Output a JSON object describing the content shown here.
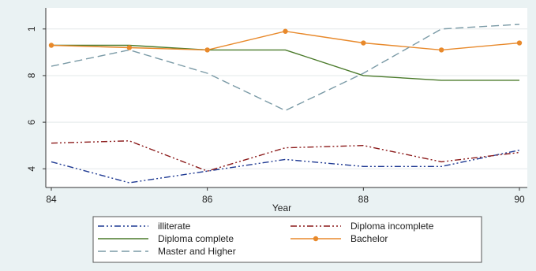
{
  "chart_data": {
    "type": "line",
    "title": "",
    "xlabel": "Year",
    "ylabel": "",
    "x": [
      84,
      85,
      86,
      87,
      88,
      89,
      90
    ],
    "xlim": [
      84,
      90
    ],
    "ylim": [
      0.34,
      1.05
    ],
    "x_ticks": [
      "84",
      "86",
      "88",
      "90"
    ],
    "y_ticks": [
      "4",
      "6",
      "8",
      "1"
    ],
    "grid": true,
    "legend_position": "bottom",
    "series": [
      {
        "name": "illiterate",
        "values": [
          0.43,
          0.34,
          0.39,
          0.44,
          0.41,
          0.41,
          0.48
        ],
        "color": "#1f3a93",
        "dash": "8,3,2,3,2,3",
        "marker": "none"
      },
      {
        "name": "Diploma incomplete",
        "values": [
          0.51,
          0.52,
          0.39,
          0.49,
          0.5,
          0.43,
          0.47
        ],
        "color": "#8b1a1a",
        "dash": "8,3,2,3,2,3",
        "marker": "none"
      },
      {
        "name": "Diploma complete",
        "values": [
          0.93,
          0.93,
          0.91,
          0.91,
          0.8,
          0.78,
          0.78
        ],
        "color": "#4a7a2a",
        "dash": "",
        "marker": "none"
      },
      {
        "name": "Bachelor",
        "values": [
          0.93,
          0.92,
          0.91,
          0.99,
          0.94,
          0.91,
          0.94
        ],
        "color": "#e8892b",
        "dash": "",
        "marker": "circle"
      },
      {
        "name": "Master and Higher",
        "values": [
          0.84,
          0.91,
          0.81,
          0.65,
          0.81,
          1.0,
          1.02
        ],
        "color": "#7a9aa6",
        "dash": "10,5",
        "marker": "none"
      }
    ]
  }
}
